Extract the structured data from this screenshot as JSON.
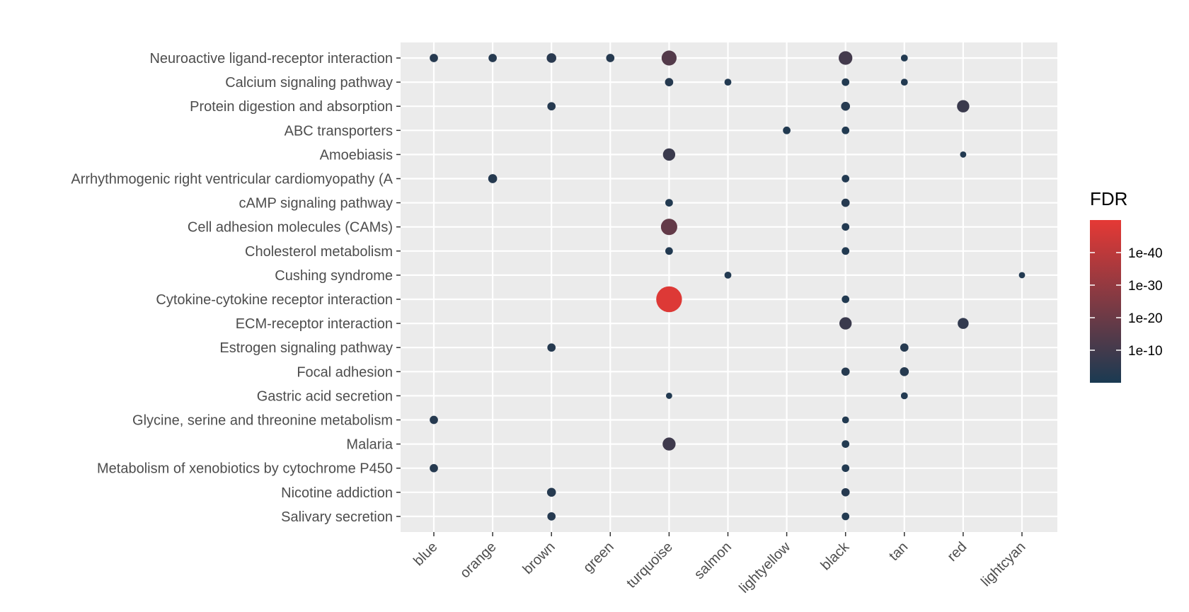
{
  "chart_data": {
    "type": "scatter",
    "x_categories": [
      "blue",
      "orange",
      "brown",
      "green",
      "turquoise",
      "salmon",
      "lightyellow",
      "black",
      "tan",
      "red",
      "lightcyan"
    ],
    "y_categories": [
      "Neuroactive ligand-receptor interaction",
      "Calcium signaling pathway",
      "Protein digestion and absorption",
      "ABC transporters",
      "Amoebiasis",
      "Arrhythmogenic right ventricular cardiomyopathy (A",
      "cAMP signaling pathway",
      "Cell adhesion molecules (CAMs)",
      "Cholesterol metabolism",
      "Cushing syndrome",
      "Cytokine-cytokine receptor interaction",
      "ECM-receptor interaction",
      "Estrogen signaling pathway",
      "Focal adhesion",
      "Gastric acid secretion",
      "Glycine, serine and threonine metabolism",
      "Malaria",
      "Metabolism of xenobiotics by cytochrome P450",
      "Nicotine addiction",
      "Salivary secretion"
    ],
    "points": [
      {
        "x": "blue",
        "y": "Neuroactive ligand-receptor interaction",
        "size": 3,
        "neglog10_fdr": 3
      },
      {
        "x": "orange",
        "y": "Neuroactive ligand-receptor interaction",
        "size": 3,
        "neglog10_fdr": 3
      },
      {
        "x": "brown",
        "y": "Neuroactive ligand-receptor interaction",
        "size": 4,
        "neglog10_fdr": 4
      },
      {
        "x": "green",
        "y": "Neuroactive ligand-receptor interaction",
        "size": 3,
        "neglog10_fdr": 3
      },
      {
        "x": "turquoise",
        "y": "Neuroactive ligand-receptor interaction",
        "size": 8,
        "neglog10_fdr": 14
      },
      {
        "x": "black",
        "y": "Neuroactive ligand-receptor interaction",
        "size": 7,
        "neglog10_fdr": 10
      },
      {
        "x": "tan",
        "y": "Neuroactive ligand-receptor interaction",
        "size": 2,
        "neglog10_fdr": 2
      },
      {
        "x": "turquoise",
        "y": "Calcium signaling pathway",
        "size": 3,
        "neglog10_fdr": 3
      },
      {
        "x": "salmon",
        "y": "Calcium signaling pathway",
        "size": 2,
        "neglog10_fdr": 2
      },
      {
        "x": "black",
        "y": "Calcium signaling pathway",
        "size": 2.5,
        "neglog10_fdr": 2
      },
      {
        "x": "tan",
        "y": "Calcium signaling pathway",
        "size": 2,
        "neglog10_fdr": 2
      },
      {
        "x": "brown",
        "y": "Protein digestion and absorption",
        "size": 3,
        "neglog10_fdr": 3
      },
      {
        "x": "black",
        "y": "Protein digestion and absorption",
        "size": 3.5,
        "neglog10_fdr": 3
      },
      {
        "x": "red",
        "y": "Protein digestion and absorption",
        "size": 6,
        "neglog10_fdr": 8
      },
      {
        "x": "lightyellow",
        "y": "ABC transporters",
        "size": 2.5,
        "neglog10_fdr": 2
      },
      {
        "x": "black",
        "y": "ABC transporters",
        "size": 2.5,
        "neglog10_fdr": 2
      },
      {
        "x": "turquoise",
        "y": "Amoebiasis",
        "size": 6,
        "neglog10_fdr": 8
      },
      {
        "x": "red",
        "y": "Amoebiasis",
        "size": 1.5,
        "neglog10_fdr": 2
      },
      {
        "x": "orange",
        "y": "Arrhythmogenic right ventricular cardiomyopathy (A",
        "size": 3.5,
        "neglog10_fdr": 3
      },
      {
        "x": "black",
        "y": "Arrhythmogenic right ventricular cardiomyopathy (A",
        "size": 2.5,
        "neglog10_fdr": 2
      },
      {
        "x": "turquoise",
        "y": "cAMP signaling pathway",
        "size": 2.5,
        "neglog10_fdr": 2
      },
      {
        "x": "black",
        "y": "cAMP signaling pathway",
        "size": 3,
        "neglog10_fdr": 3
      },
      {
        "x": "turquoise",
        "y": "Cell adhesion molecules (CAMs)",
        "size": 9,
        "neglog10_fdr": 18
      },
      {
        "x": "black",
        "y": "Cell adhesion molecules (CAMs)",
        "size": 2.5,
        "neglog10_fdr": 2
      },
      {
        "x": "turquoise",
        "y": "Cholesterol metabolism",
        "size": 2.5,
        "neglog10_fdr": 2
      },
      {
        "x": "black",
        "y": "Cholesterol metabolism",
        "size": 2.5,
        "neglog10_fdr": 2
      },
      {
        "x": "salmon",
        "y": "Cushing syndrome",
        "size": 2,
        "neglog10_fdr": 2
      },
      {
        "x": "lightcyan",
        "y": "Cushing syndrome",
        "size": 1.5,
        "neglog10_fdr": 2
      },
      {
        "x": "turquoise",
        "y": "Cytokine-cytokine receptor interaction",
        "size": 16,
        "neglog10_fdr": 48
      },
      {
        "x": "black",
        "y": "Cytokine-cytokine receptor interaction",
        "size": 2.5,
        "neglog10_fdr": 2
      },
      {
        "x": "black",
        "y": "ECM-receptor interaction",
        "size": 6,
        "neglog10_fdr": 8
      },
      {
        "x": "red",
        "y": "ECM-receptor interaction",
        "size": 5,
        "neglog10_fdr": 6
      },
      {
        "x": "brown",
        "y": "Estrogen signaling pathway",
        "size": 3,
        "neglog10_fdr": 3
      },
      {
        "x": "tan",
        "y": "Estrogen signaling pathway",
        "size": 3,
        "neglog10_fdr": 3
      },
      {
        "x": "black",
        "y": "Focal adhesion",
        "size": 3,
        "neglog10_fdr": 3
      },
      {
        "x": "tan",
        "y": "Focal adhesion",
        "size": 3.5,
        "neglog10_fdr": 3
      },
      {
        "x": "turquoise",
        "y": "Gastric acid secretion",
        "size": 1.5,
        "neglog10_fdr": 2
      },
      {
        "x": "tan",
        "y": "Gastric acid secretion",
        "size": 2,
        "neglog10_fdr": 2
      },
      {
        "x": "blue",
        "y": "Glycine, serine and threonine metabolism",
        "size": 3,
        "neglog10_fdr": 3
      },
      {
        "x": "black",
        "y": "Glycine, serine and threonine metabolism",
        "size": 2,
        "neglog10_fdr": 2
      },
      {
        "x": "turquoise",
        "y": "Malaria",
        "size": 6.5,
        "neglog10_fdr": 9
      },
      {
        "x": "black",
        "y": "Malaria",
        "size": 2.5,
        "neglog10_fdr": 2
      },
      {
        "x": "blue",
        "y": "Metabolism of xenobiotics by cytochrome P450",
        "size": 3,
        "neglog10_fdr": 3
      },
      {
        "x": "black",
        "y": "Metabolism of xenobiotics by cytochrome P450",
        "size": 2.5,
        "neglog10_fdr": 2
      },
      {
        "x": "brown",
        "y": "Nicotine addiction",
        "size": 3.5,
        "neglog10_fdr": 3
      },
      {
        "x": "black",
        "y": "Nicotine addiction",
        "size": 3,
        "neglog10_fdr": 3
      },
      {
        "x": "brown",
        "y": "Salivary secretion",
        "size": 3,
        "neglog10_fdr": 3
      },
      {
        "x": "black",
        "y": "Salivary secretion",
        "size": 2.5,
        "neglog10_fdr": 2
      }
    ],
    "legend": {
      "title": "FDR",
      "placement": "right",
      "scale": "log10",
      "breaks": [
        "1e-40",
        "1e-30",
        "1e-20",
        "1e-10"
      ],
      "break_values": [
        40,
        30,
        20,
        10
      ],
      "range": [
        0,
        50
      ],
      "color_low": "#1a3a52",
      "color_high": "#e53935"
    },
    "panel_background": "#ebebeb",
    "grid": true,
    "title": "",
    "xlabel": "",
    "ylabel": ""
  }
}
